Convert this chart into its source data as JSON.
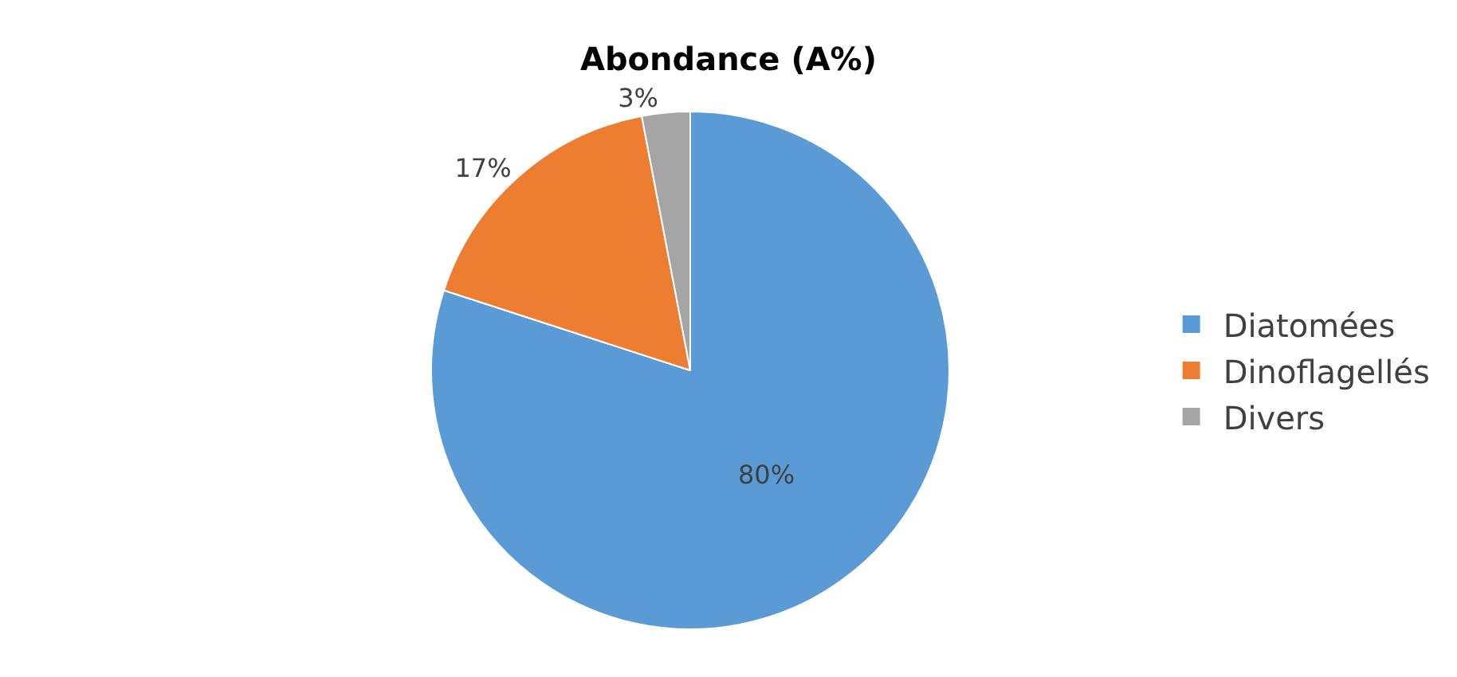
{
  "chart_data": {
    "type": "pie",
    "title": "Abondance (A%)",
    "categories": [
      "Diatomées",
      "Dinoflagellés",
      "Divers"
    ],
    "values": [
      80,
      17,
      3
    ],
    "value_labels": [
      "80%",
      "17%",
      "3%"
    ],
    "colors": [
      "#5b9bd5",
      "#ed7d31",
      "#a5a5a5"
    ],
    "legend": "right"
  }
}
